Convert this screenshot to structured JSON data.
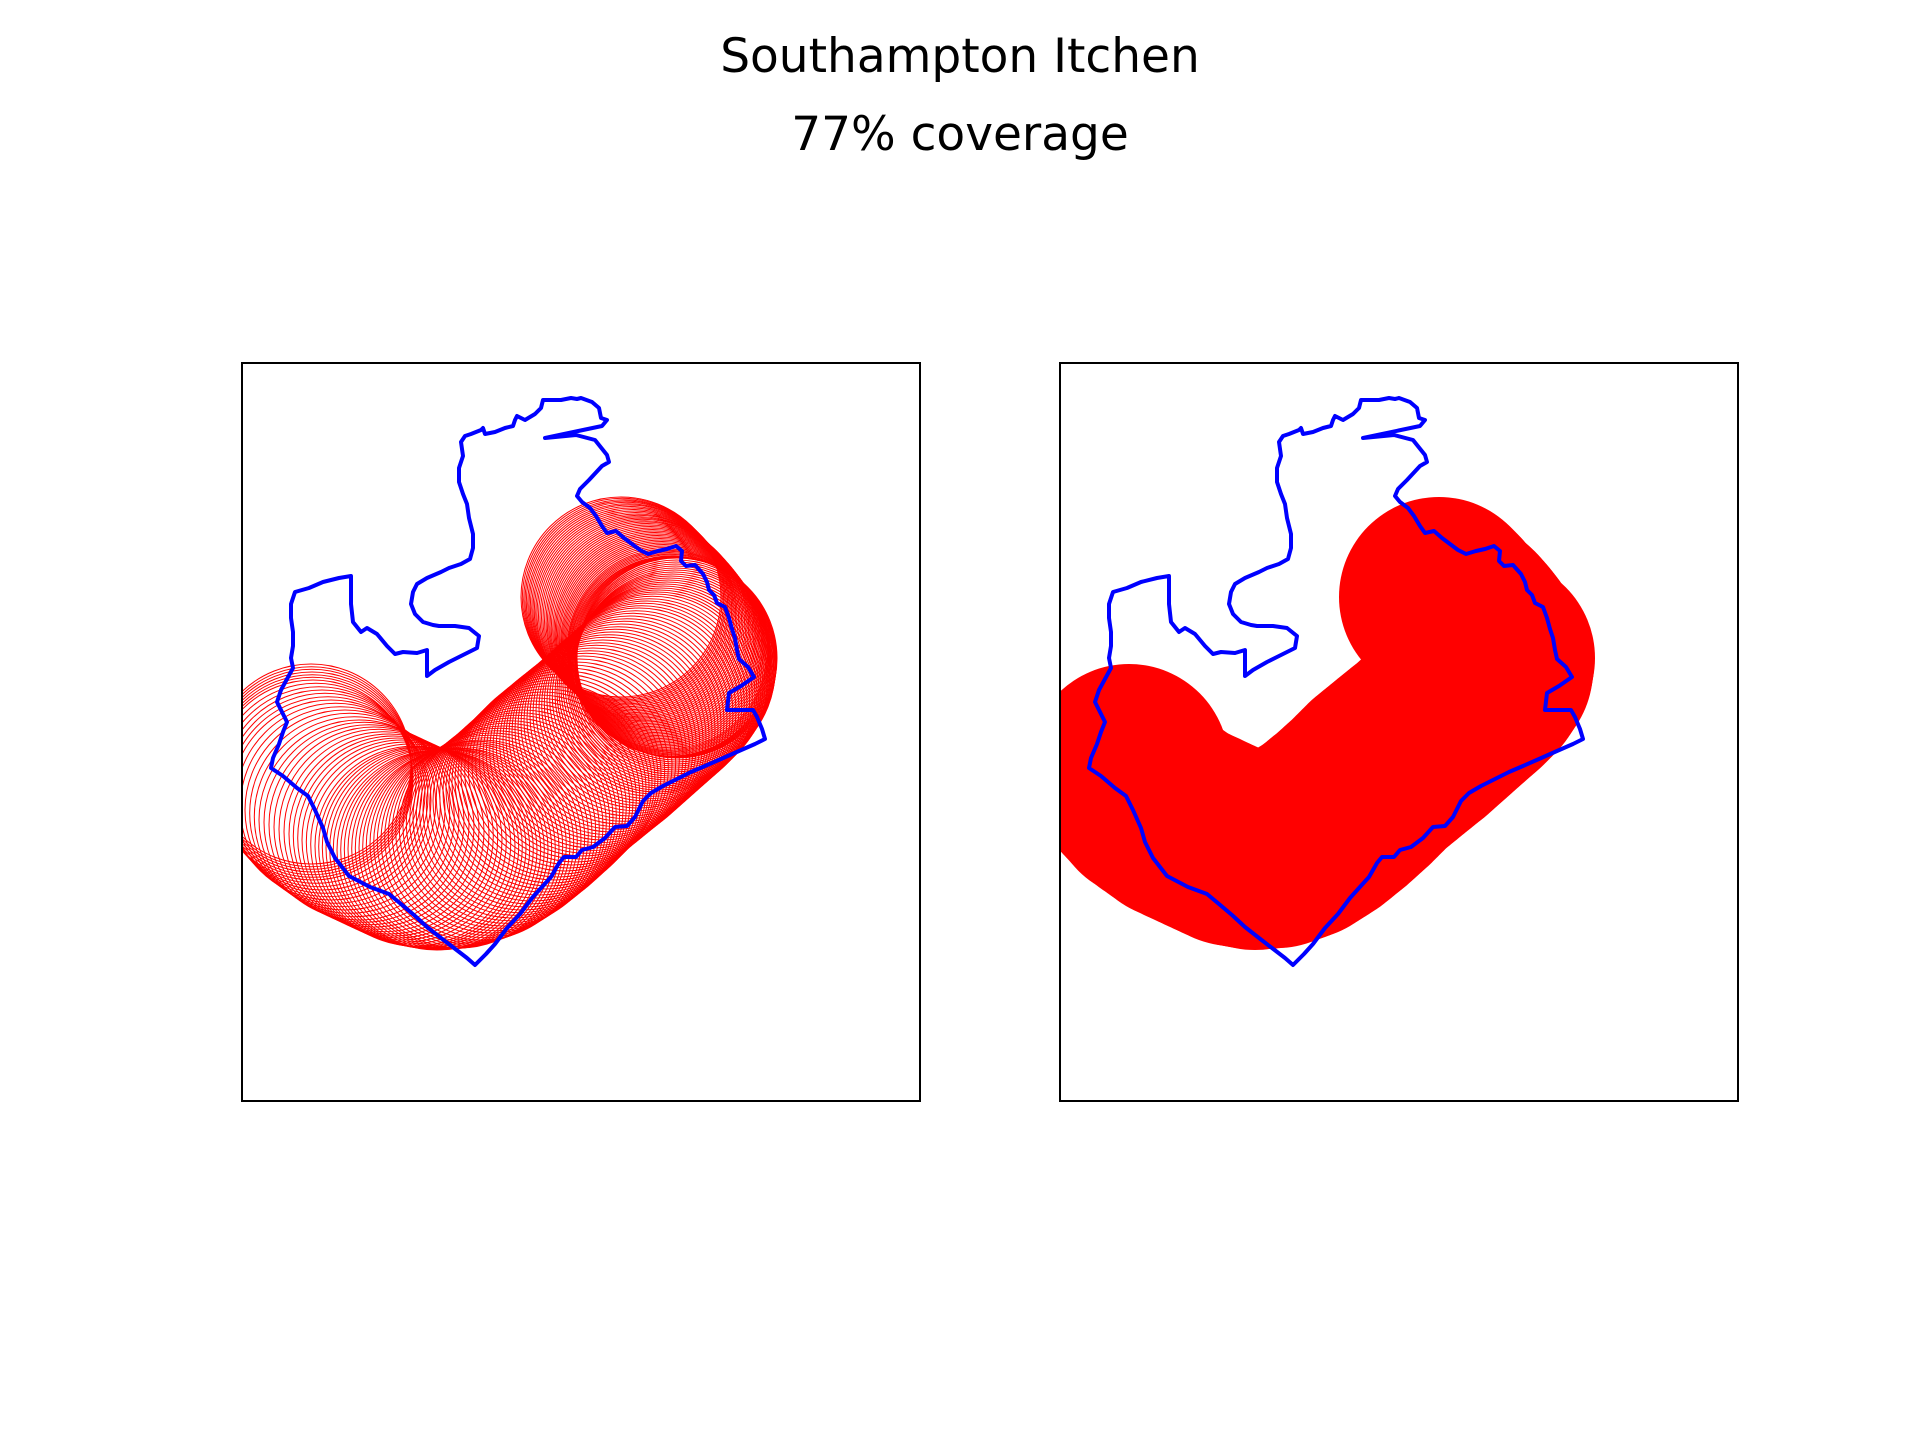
{
  "figure": {
    "title": "Southampton Itchen",
    "subtitle": "77% coverage"
  },
  "colors": {
    "boundary": "#0000ff",
    "coverage": "#ff0000",
    "frame": "#000000",
    "background": "#ffffff"
  },
  "panels": [
    {
      "id": "left",
      "rendering": "circle-outlines"
    },
    {
      "id": "right",
      "rendering": "filled-union"
    }
  ],
  "coverage_percent": 77
}
